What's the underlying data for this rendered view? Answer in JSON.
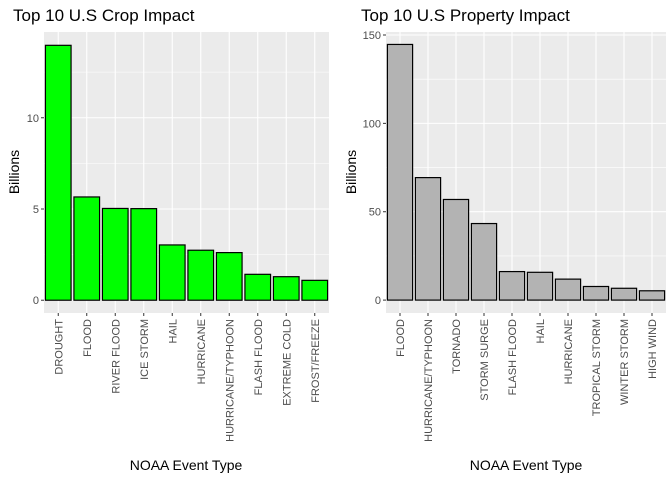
{
  "chart_data": [
    {
      "type": "bar",
      "title": "Top 10 U.S Crop Impact",
      "xlabel": "NOAA Event Type",
      "ylabel": "Billions",
      "ylim": [
        -0.7,
        14.7
      ],
      "yticks": [
        0,
        5,
        10
      ],
      "bar_fill": "#00ff00",
      "bar_stroke": "#000000",
      "categories": [
        "DROUGHT",
        "FLOOD",
        "RIVER FLOOD",
        "ICE STORM",
        "HAIL",
        "HURRICANE",
        "HURRICANE/TYPHOON",
        "FLASH FLOOD",
        "EXTREME COLD",
        "FROST/FREEZE"
      ],
      "values": [
        13.97,
        5.66,
        5.03,
        5.02,
        3.03,
        2.74,
        2.61,
        1.42,
        1.29,
        1.09
      ]
    },
    {
      "type": "bar",
      "title": "Top 10 U.S Property Impact",
      "xlabel": "NOAA Event Type",
      "ylabel": "Billions",
      "ylim": [
        -7.3,
        151.7
      ],
      "yticks": [
        0,
        50,
        100,
        150
      ],
      "bar_fill": "#b3b3b3",
      "bar_stroke": "#000000",
      "categories": [
        "FLOOD",
        "HURRICANE/TYPHOON",
        "TORNADO",
        "STORM SURGE",
        "FLASH FLOOD",
        "HAIL",
        "HURRICANE",
        "TROPICAL STORM",
        "WINTER STORM",
        "HIGH WIND"
      ],
      "values": [
        144.66,
        69.31,
        56.94,
        43.32,
        16.14,
        15.73,
        11.87,
        7.7,
        6.69,
        5.27
      ]
    }
  ]
}
